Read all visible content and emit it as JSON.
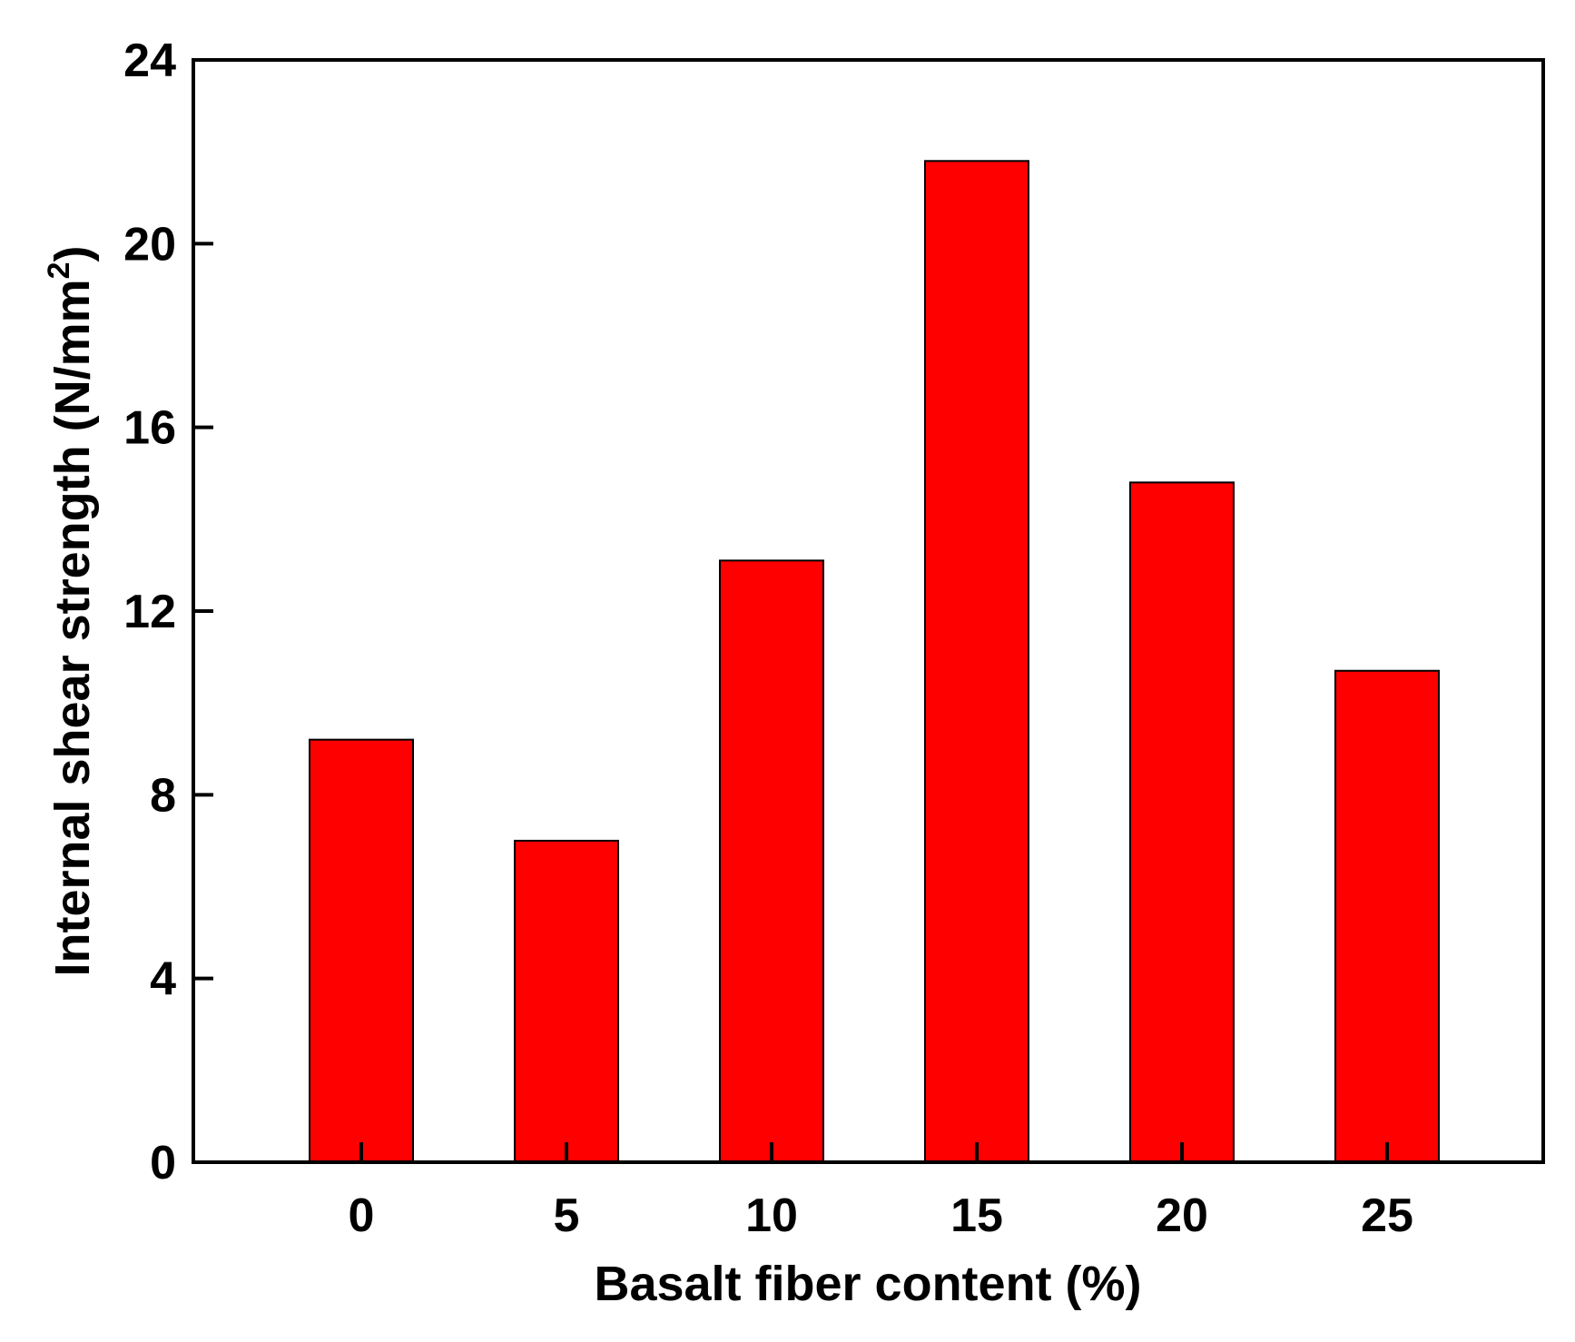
{
  "chart_data": {
    "type": "bar",
    "title": "",
    "xlabel": "Basalt fiber content (%)",
    "ylabel_main": "Internal shear strength (N/mm",
    "ylabel_sup": "2",
    "ylabel_close": ")",
    "categories": [
      "0",
      "5",
      "10",
      "15",
      "20",
      "25"
    ],
    "values": [
      9.2,
      7.0,
      13.1,
      21.8,
      14.8,
      10.7
    ],
    "ylim": [
      0,
      24
    ],
    "yticks": [
      "0",
      "4",
      "8",
      "12",
      "16",
      "20",
      "24"
    ],
    "bar_color": "#ff0000",
    "grid": false,
    "legend": "none"
  }
}
